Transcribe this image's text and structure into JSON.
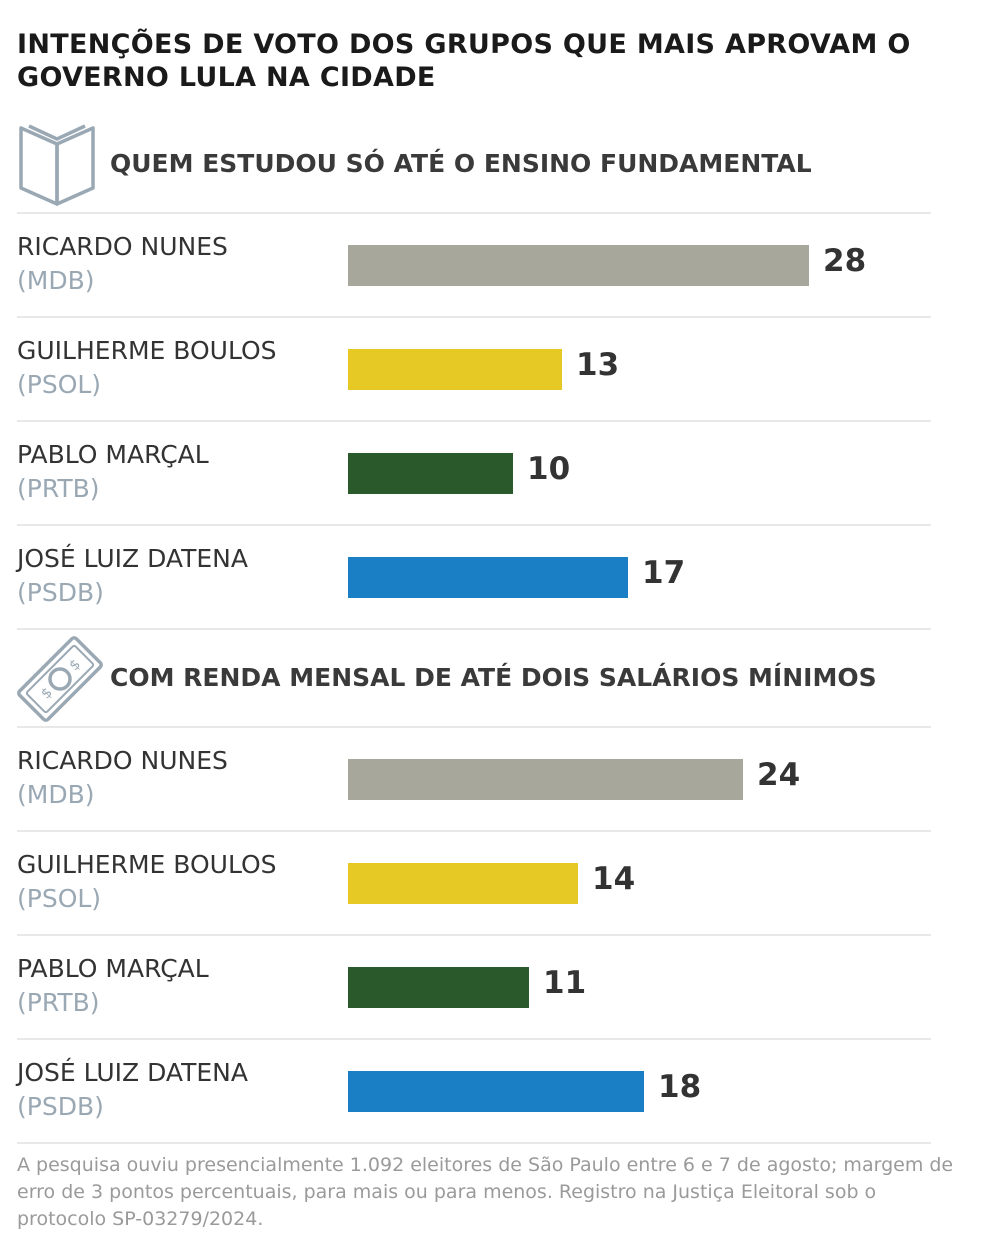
{
  "title": "INTENÇÕES DE VOTO DOS GRUPOS QUE MAIS APROVAM O GOVERNO LULA NA CIDADE",
  "footnote": "A pesquisa ouviu presencialmente 1.092 eleitores de São Paulo entre 6 e 7 de agosto; margem de erro de 3 pontos percentuais, para mais ou para menos. Registro na Justiça Eleitoral sob o protocolo SP-03279/2024.",
  "colors": {
    "MDB": "#a8a79b",
    "PSOL": "#e6c924",
    "PRTB": "#2a5a2c",
    "PSDB": "#1a7fc4",
    "icon": "#9aa8b4"
  },
  "chart_data": [
    {
      "type": "bar",
      "orientation": "horizontal",
      "title": "QUEM ESTUDOU SÓ ATÉ O ENSINO FUNDAMENTAL",
      "icon": "book-icon",
      "categories": [
        "RICARDO NUNES",
        "GUILHERME BOULOS",
        "PABLO MARÇAL",
        "JOSÉ LUIZ DATENA"
      ],
      "parties": [
        "(MDB)",
        "(PSOL)",
        "(PRTB)",
        "(PSDB)"
      ],
      "party_keys": [
        "MDB",
        "PSOL",
        "PRTB",
        "PSDB"
      ],
      "values": [
        28,
        13,
        10,
        17
      ],
      "grid": false
    },
    {
      "type": "bar",
      "orientation": "horizontal",
      "title": "COM RENDA MENSAL DE ATÉ DOIS SALÁRIOS MÍNIMOS",
      "icon": "banknote-icon",
      "categories": [
        "RICARDO NUNES",
        "GUILHERME BOULOS",
        "PABLO MARÇAL",
        "JOSÉ LUIZ DATENA"
      ],
      "parties": [
        "(MDB)",
        "(PSOL)",
        "(PRTB)",
        "(PSDB)"
      ],
      "party_keys": [
        "MDB",
        "PSOL",
        "PRTB",
        "PSDB"
      ],
      "values": [
        24,
        14,
        11,
        18
      ],
      "grid": false
    }
  ]
}
